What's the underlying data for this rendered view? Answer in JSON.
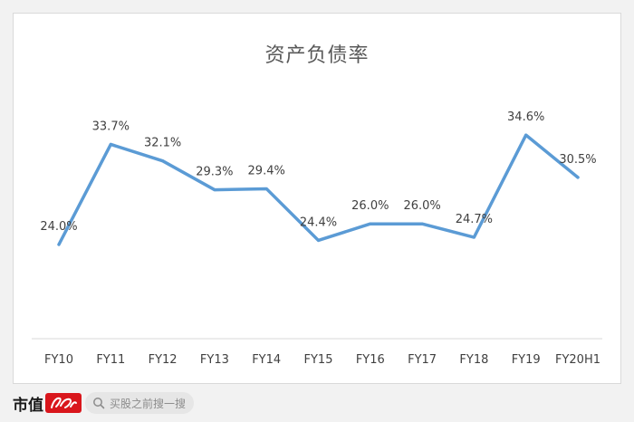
{
  "chart_data": {
    "type": "line",
    "title": "资产负债率",
    "xlabel": "",
    "ylabel": "",
    "categories": [
      "FY10",
      "FY11",
      "FY12",
      "FY13",
      "FY14",
      "FY15",
      "FY16",
      "FY17",
      "FY18",
      "FY19",
      "FY20H1"
    ],
    "series": [
      {
        "values": [
          24.0,
          33.7,
          32.1,
          29.3,
          29.4,
          24.4,
          26.0,
          26.0,
          24.7,
          34.6,
          30.5
        ],
        "labels": [
          "24.0%",
          "33.7%",
          "32.1%",
          "29.3%",
          "29.4%",
          "24.4%",
          "26.0%",
          "26.0%",
          "24.7%",
          "34.6%",
          "30.5%"
        ]
      }
    ],
    "ylim": [
      15,
      40
    ],
    "grid": false,
    "legend": "none",
    "line_color": "#5b9bd5"
  },
  "footer": {
    "logo_text": "市值",
    "search_placeholder": "买股之前搜一搜"
  }
}
